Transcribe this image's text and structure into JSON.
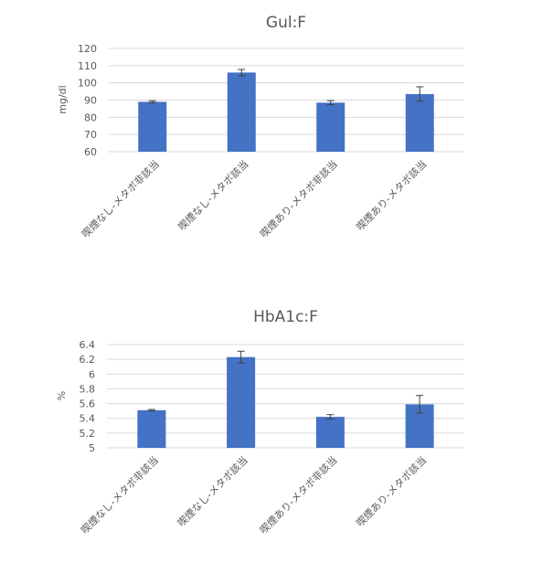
{
  "chart_data": [
    {
      "type": "bar",
      "title": "Gul:F",
      "ylabel": "mg/dl",
      "xlabel": "",
      "categories": [
        "喫煙なし-メタボ非該当",
        "喫煙なし-メタボ該当",
        "喫煙あり-メタボ非該当",
        "喫煙あり-メタボ該当"
      ],
      "values": [
        89,
        106,
        88.5,
        93.5
      ],
      "errors": [
        0.6,
        1.8,
        1.2,
        4.2
      ],
      "ylim": [
        60,
        120
      ],
      "yticks": [
        "60",
        "70",
        "80",
        "90",
        "100",
        "110",
        "120"
      ],
      "grid": true,
      "bar_color": "#4472C4"
    },
    {
      "type": "bar",
      "title": "HbA1c:F",
      "ylabel": "%",
      "xlabel": "",
      "categories": [
        "喫煙なし-メタボ非該当",
        "喫煙なし-メタボ該当",
        "喫煙あり-メタボ非該当",
        "喫煙あり-メタボ該当"
      ],
      "values": [
        5.51,
        6.23,
        5.42,
        5.59
      ],
      "errors": [
        0.01,
        0.08,
        0.03,
        0.12
      ],
      "ylim": [
        5,
        6.4
      ],
      "yticks": [
        "5",
        "5.2",
        "5.4",
        "5.6",
        "5.8",
        "6",
        "6.2",
        "6.4"
      ],
      "grid": true,
      "bar_color": "#4472C4"
    }
  ]
}
